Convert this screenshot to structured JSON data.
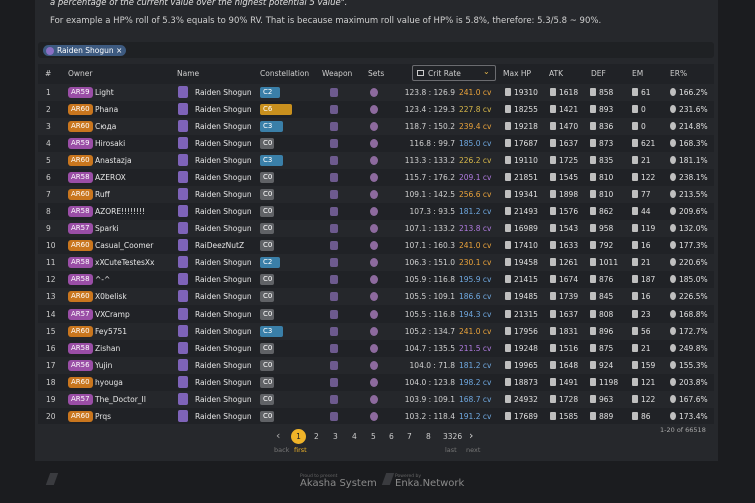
{
  "intro": {
    "line1": "a percentage of the current value over the highest potential 5 value\".",
    "line2": "For example a HP% roll of 5.3% equals to 90% RV. That is because maximum roll value of HP% is 5.8%, therefore: 5.3/5.8 ~ 90%."
  },
  "filter": {
    "tag": "Raiden Shogun",
    "close": "×"
  },
  "table": {
    "headers": [
      "#",
      "Owner",
      "Name",
      "Constellation",
      "Weapon",
      "Sets",
      "Crit Rate",
      "Max HP",
      "ATK",
      "DEF",
      "EM",
      "ER%"
    ],
    "rows": [
      {
        "rank": "1",
        "ar": "AR59",
        "owner": "Light",
        "name": "Raiden Shogun",
        "constellation": "C2",
        "crit_ratio": "123.8 : 126.9",
        "crit_value": "241.0 cv",
        "max_hp": "19310",
        "atk": "1618",
        "def": "858",
        "em": "61",
        "er": "166.2%"
      },
      {
        "rank": "2",
        "ar": "AR60",
        "owner": "Phana",
        "name": "Raiden Shogun",
        "constellation": "C6",
        "crit_ratio": "123.4 : 129.3",
        "crit_value": "227.8 cv",
        "max_hp": "18255",
        "atk": "1421",
        "def": "893",
        "em": "0",
        "er": "231.6%"
      },
      {
        "rank": "3",
        "ar": "AR60",
        "owner": "Сюда",
        "name": "Raiden Shogun",
        "constellation": "C3",
        "crit_ratio": "118.7 : 150.2",
        "crit_value": "239.4 cv",
        "max_hp": "19218",
        "atk": "1470",
        "def": "836",
        "em": "0",
        "er": "214.8%"
      },
      {
        "rank": "4",
        "ar": "AR59",
        "owner": "Hirosaki",
        "name": "Raiden Shogun",
        "constellation": "C0",
        "crit_ratio": "116.8 : 99.7",
        "crit_value": "185.0 cv",
        "max_hp": "17687",
        "atk": "1637",
        "def": "873",
        "em": "621",
        "er": "168.3%"
      },
      {
        "rank": "5",
        "ar": "AR60",
        "owner": "Anastazja",
        "name": "Raiden Shogun",
        "constellation": "C3",
        "crit_ratio": "113.3 : 133.2",
        "crit_value": "226.2 cv",
        "max_hp": "19110",
        "atk": "1725",
        "def": "835",
        "em": "21",
        "er": "181.1%"
      },
      {
        "rank": "6",
        "ar": "AR58",
        "owner": "AZEROX",
        "name": "Raiden Shogun",
        "constellation": "C0",
        "crit_ratio": "115.7 : 176.2",
        "crit_value": "209.1 cv",
        "max_hp": "21851",
        "atk": "1545",
        "def": "810",
        "em": "122",
        "er": "238.1%"
      },
      {
        "rank": "7",
        "ar": "AR60",
        "owner": "Ruff",
        "name": "Raiden Shogun",
        "constellation": "C0",
        "crit_ratio": "109.1 : 142.5",
        "crit_value": "256.6 cv",
        "max_hp": "19341",
        "atk": "1898",
        "def": "810",
        "em": "77",
        "er": "213.5%"
      },
      {
        "rank": "8",
        "ar": "AR58",
        "owner": "AZORE!!!!!!!!",
        "name": "Raiden Shogun",
        "constellation": "C0",
        "crit_ratio": "107.3 : 93.5",
        "crit_value": "181.2 cv",
        "max_hp": "21493",
        "atk": "1576",
        "def": "862",
        "em": "44",
        "er": "209.6%"
      },
      {
        "rank": "9",
        "ar": "AR57",
        "owner": "Sparki",
        "name": "Raiden Shogun",
        "constellation": "C0",
        "crit_ratio": "107.1 : 133.2",
        "crit_value": "213.8 cv",
        "max_hp": "16989",
        "atk": "1543",
        "def": "958",
        "em": "119",
        "er": "132.0%"
      },
      {
        "rank": "10",
        "ar": "AR60",
        "owner": "Casual_Coomer",
        "name": "RaiDeezNutZ",
        "constellation": "C0",
        "crit_ratio": "107.1 : 160.3",
        "crit_value": "241.0 cv",
        "max_hp": "17410",
        "atk": "1633",
        "def": "792",
        "em": "16",
        "er": "177.3%"
      },
      {
        "rank": "11",
        "ar": "AR58",
        "owner": "xXCuteTestesXx",
        "name": "Raiden Shogun",
        "constellation": "C2",
        "crit_ratio": "106.3 : 151.0",
        "crit_value": "230.1 cv",
        "max_hp": "19458",
        "atk": "1261",
        "def": "1011",
        "em": "21",
        "er": "220.6%"
      },
      {
        "rank": "12",
        "ar": "AR58",
        "owner": "^-^",
        "name": "Raiden Shogun",
        "constellation": "C0",
        "crit_ratio": "105.9 : 116.8",
        "crit_value": "195.9 cv",
        "max_hp": "21415",
        "atk": "1674",
        "def": "876",
        "em": "187",
        "er": "185.0%"
      },
      {
        "rank": "13",
        "ar": "AR60",
        "owner": "X0belisk",
        "name": "Raiden Shogun",
        "constellation": "C0",
        "crit_ratio": "105.5 : 109.1",
        "crit_value": "186.6 cv",
        "max_hp": "19485",
        "atk": "1739",
        "def": "845",
        "em": "16",
        "er": "226.5%"
      },
      {
        "rank": "14",
        "ar": "AR57",
        "owner": "VXCramp",
        "name": "Raiden Shogun",
        "constellation": "C0",
        "crit_ratio": "105.5 : 116.8",
        "crit_value": "194.3 cv",
        "max_hp": "21315",
        "atk": "1637",
        "def": "808",
        "em": "23",
        "er": "168.8%"
      },
      {
        "rank": "15",
        "ar": "AR60",
        "owner": "Fey5751",
        "name": "Raiden Shogun",
        "constellation": "C3",
        "crit_ratio": "105.2 : 134.7",
        "crit_value": "241.0 cv",
        "max_hp": "17956",
        "atk": "1831",
        "def": "896",
        "em": "56",
        "er": "172.7%"
      },
      {
        "rank": "16",
        "ar": "AR58",
        "owner": "Zishan",
        "name": "Raiden Shogun",
        "constellation": "C0",
        "crit_ratio": "104.7 : 135.5",
        "crit_value": "211.5 cv",
        "max_hp": "19248",
        "atk": "1516",
        "def": "875",
        "em": "21",
        "er": "249.8%"
      },
      {
        "rank": "17",
        "ar": "AR56",
        "owner": "Yujin",
        "name": "Raiden Shogun",
        "constellation": "C0",
        "crit_ratio": "104.0 : 71.8",
        "crit_value": "181.2 cv",
        "max_hp": "19965",
        "atk": "1648",
        "def": "924",
        "em": "159",
        "er": "155.3%"
      },
      {
        "rank": "18",
        "ar": "AR60",
        "owner": "hyouga",
        "name": "Raiden Shogun",
        "constellation": "C0",
        "crit_ratio": "104.0 : 123.8",
        "crit_value": "198.2 cv",
        "max_hp": "18873",
        "atk": "1491",
        "def": "1198",
        "em": "121",
        "er": "203.8%"
      },
      {
        "rank": "19",
        "ar": "AR57",
        "owner": "The_Doctor_II",
        "name": "Raiden Shogun",
        "constellation": "C0",
        "crit_ratio": "103.9 : 109.1",
        "crit_value": "168.7 cv",
        "max_hp": "24932",
        "atk": "1728",
        "def": "963",
        "em": "122",
        "er": "167.6%"
      },
      {
        "rank": "20",
        "ar": "AR60",
        "owner": "Prqs",
        "name": "Raiden Shogun",
        "constellation": "C0",
        "crit_ratio": "103.2 : 118.4",
        "crit_value": "191.2 cv",
        "max_hp": "17689",
        "atk": "1585",
        "def": "889",
        "em": "86",
        "er": "173.4%"
      }
    ],
    "count": "1-20 of 66518"
  },
  "pagination": {
    "prev": "‹",
    "next": "›",
    "pages": [
      "1",
      "2",
      "3",
      "4",
      "5",
      "6",
      "7",
      "8",
      "3326"
    ],
    "back": "back",
    "first": "first",
    "last": "last",
    "next_label": "next"
  },
  "footer": {
    "left_small": "Proud to present",
    "left": "Akasha System",
    "right_small": "Powered by",
    "right": "Enka.Network"
  }
}
